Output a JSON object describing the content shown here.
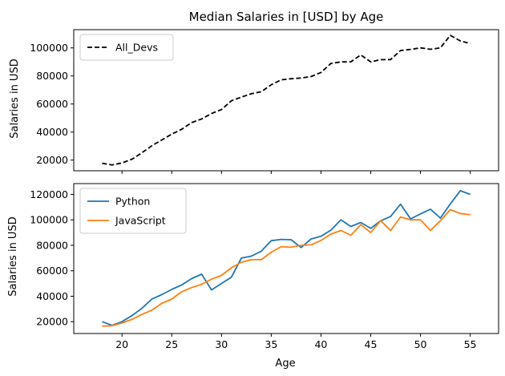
{
  "chart_data": [
    {
      "type": "line",
      "title": "Median Salaries in [USD] by Age",
      "xlabel": "",
      "ylabel": "Salaries in USD",
      "xlim": [
        15.15,
        57.85
      ],
      "ylim": [
        12400,
        113000
      ],
      "xticks": [
        20,
        25,
        30,
        35,
        40,
        45,
        50,
        55
      ],
      "yticks": [
        20000,
        40000,
        60000,
        80000,
        100000
      ],
      "legend": "top-left",
      "grid": false,
      "x": [
        18,
        19,
        20,
        21,
        22,
        23,
        24,
        25,
        26,
        27,
        28,
        29,
        30,
        31,
        32,
        33,
        34,
        35,
        36,
        37,
        38,
        39,
        40,
        41,
        42,
        43,
        44,
        45,
        46,
        47,
        48,
        49,
        50,
        51,
        52,
        53,
        54,
        55
      ],
      "series": [
        {
          "name": "All_Devs",
          "color": "#000000",
          "style": "dashed",
          "values": [
            17784,
            16500,
            18012,
            20628,
            25206,
            30252,
            34368,
            38496,
            42000,
            46752,
            49320,
            53200,
            56000,
            62316,
            64928,
            67317,
            68748,
            73752,
            77232,
            78000,
            78508,
            79536,
            82488,
            88935,
            90000,
            90056,
            95000,
            90000,
            91633,
            91660,
            98150,
            98964,
            100000,
            98988,
            100000,
            108923,
            105000,
            103117
          ]
        }
      ]
    },
    {
      "type": "line",
      "title": "",
      "xlabel": "Age",
      "ylabel": "Salaries in USD",
      "xlim": [
        15.15,
        57.85
      ],
      "ylim": [
        10700,
        128500
      ],
      "xticks": [
        20,
        25,
        30,
        35,
        40,
        45,
        50,
        55
      ],
      "yticks": [
        20000,
        40000,
        60000,
        80000,
        100000,
        120000
      ],
      "legend": "top-left",
      "grid": false,
      "x": [
        18,
        19,
        20,
        21,
        22,
        23,
        24,
        25,
        26,
        27,
        28,
        29,
        30,
        31,
        32,
        33,
        34,
        35,
        36,
        37,
        38,
        39,
        40,
        41,
        42,
        43,
        44,
        45,
        46,
        47,
        48,
        49,
        50,
        51,
        52,
        53,
        54,
        55
      ],
      "series": [
        {
          "name": "Python",
          "color": "#1f77b4",
          "style": "solid",
          "values": [
            20046,
            17100,
            20000,
            24744,
            30500,
            37732,
            41247,
            45372,
            48876,
            53850,
            57287,
            45000,
            50000,
            55000,
            70000,
            71496,
            75370,
            83640,
            84666,
            84392,
            78254,
            85000,
            87038,
            91991,
            100000,
            94796,
            97962,
            93302,
            99240,
            102736,
            112285,
            100771,
            104708,
            108423,
            101407,
            112542,
            122870,
            120000
          ]
        },
        {
          "name": "JavaScript",
          "color": "#ff7f0e",
          "style": "solid",
          "values": [
            16446,
            16791,
            18942,
            21780,
            25704,
            29000,
            34372,
            37810,
            43515,
            46823,
            49293,
            53437,
            56373,
            62375,
            66674,
            68745,
            68746,
            74583,
            79000,
            78508,
            79996,
            80403,
            83820,
            88833,
            91660,
            87892,
            96243,
            90000,
            99313,
            91660,
            102264,
            100000,
            100000,
            91660,
            99240,
            108000,
            105000,
            104000
          ]
        }
      ]
    }
  ]
}
